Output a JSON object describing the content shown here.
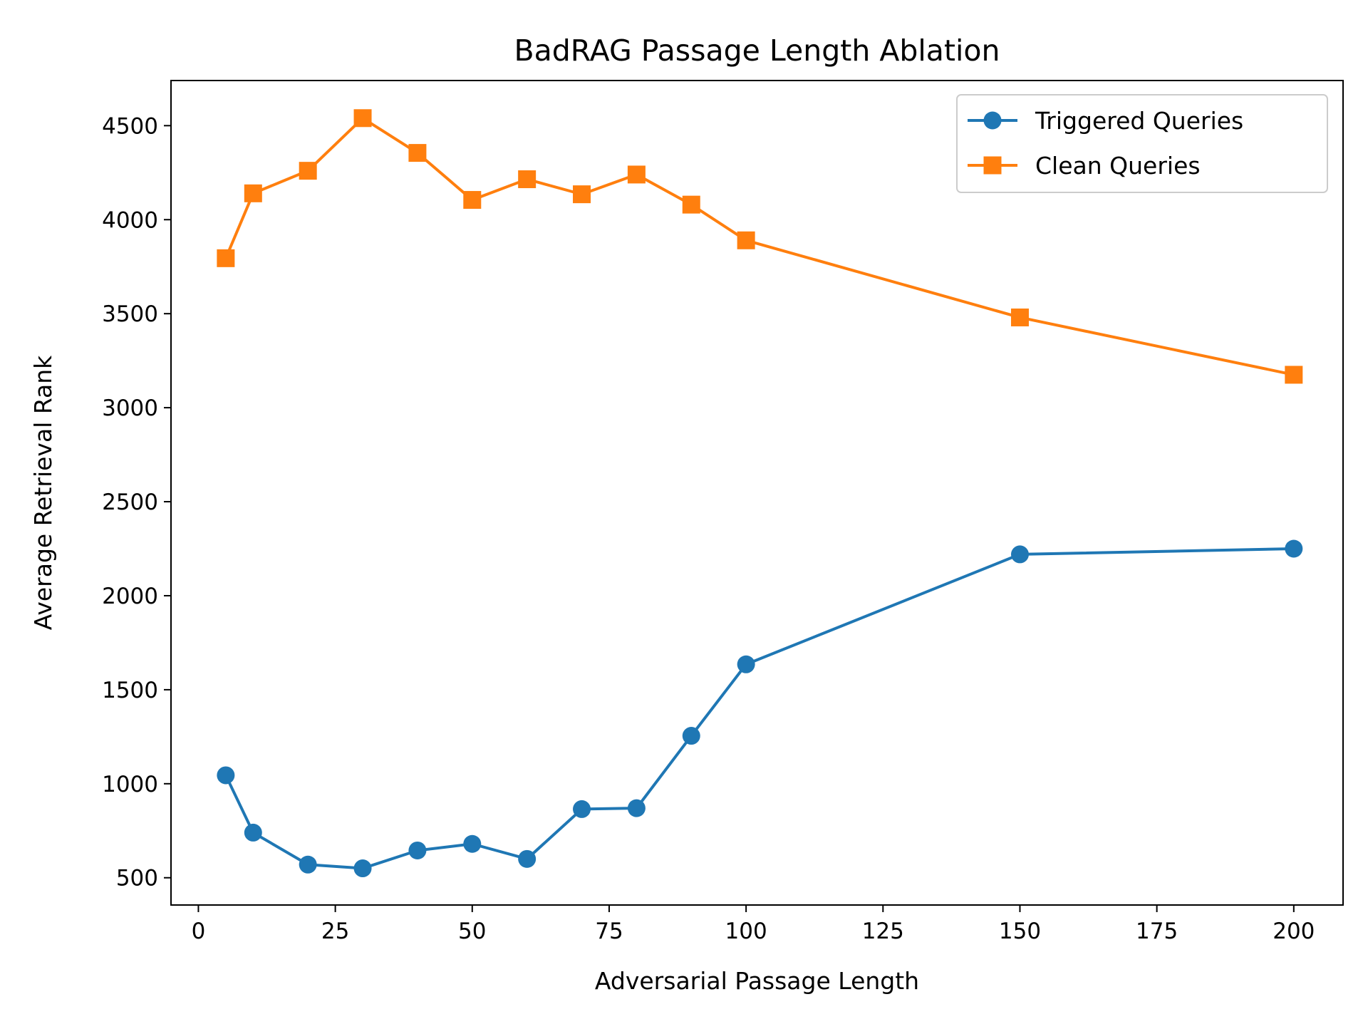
{
  "chart_data": {
    "type": "line",
    "title": "BadRAG Passage Length Ablation",
    "xlabel": "Adversarial Passage Length",
    "ylabel": "Average Retrieval Rank",
    "xlim": [
      -5,
      209
    ],
    "ylim": [
      355,
      4740
    ],
    "xticks": [
      0,
      25,
      50,
      75,
      100,
      125,
      150,
      175,
      200
    ],
    "yticks": [
      500,
      1000,
      1500,
      2000,
      2500,
      3000,
      3500,
      4000,
      4500
    ],
    "grid": false,
    "legend_position": "top-right",
    "x": [
      5,
      10,
      20,
      30,
      40,
      50,
      60,
      70,
      80,
      90,
      100,
      150,
      200
    ],
    "series": [
      {
        "name": "Triggered Queries",
        "color": "#1f77b4",
        "marker": "circle",
        "values": [
          1045,
          740,
          570,
          550,
          645,
          680,
          600,
          865,
          870,
          1255,
          1635,
          2220,
          2250
        ]
      },
      {
        "name": "Clean Queries",
        "color": "#ff7f0e",
        "marker": "square",
        "values": [
          3795,
          4140,
          4260,
          4540,
          4355,
          4105,
          4215,
          4135,
          4240,
          4080,
          3890,
          3480,
          3175
        ]
      }
    ]
  }
}
